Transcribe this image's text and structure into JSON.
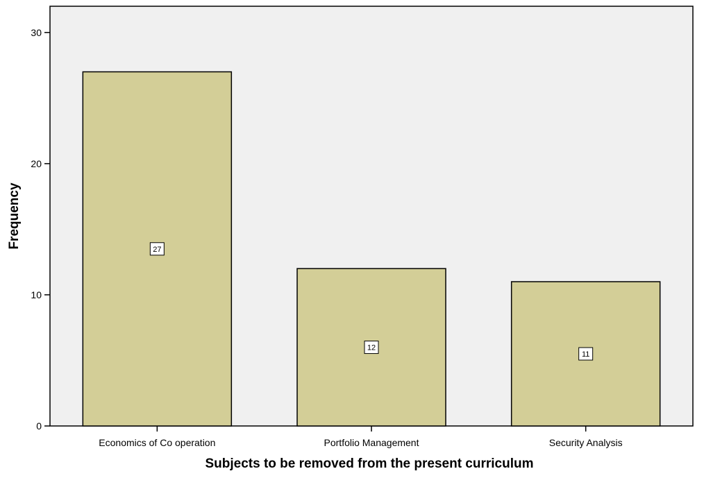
{
  "chart_data": {
    "type": "bar",
    "categories": [
      "Economics of Co operation",
      "Portfolio Management",
      "Security Analysis"
    ],
    "values": [
      27,
      12,
      11
    ],
    "data_labels": [
      "27",
      "12",
      "11"
    ],
    "title": "",
    "xlabel": "Subjects to be removed from the present curriculum",
    "ylabel": "Frequency",
    "ylim": [
      0,
      32
    ],
    "yticks": [
      0,
      10,
      20,
      30
    ],
    "grid": false,
    "colors": {
      "plot_background": "#f0f0f0",
      "bar_fill": "#d3ce97",
      "bar_stroke": "#000000",
      "label_box": "#ffffff"
    }
  }
}
